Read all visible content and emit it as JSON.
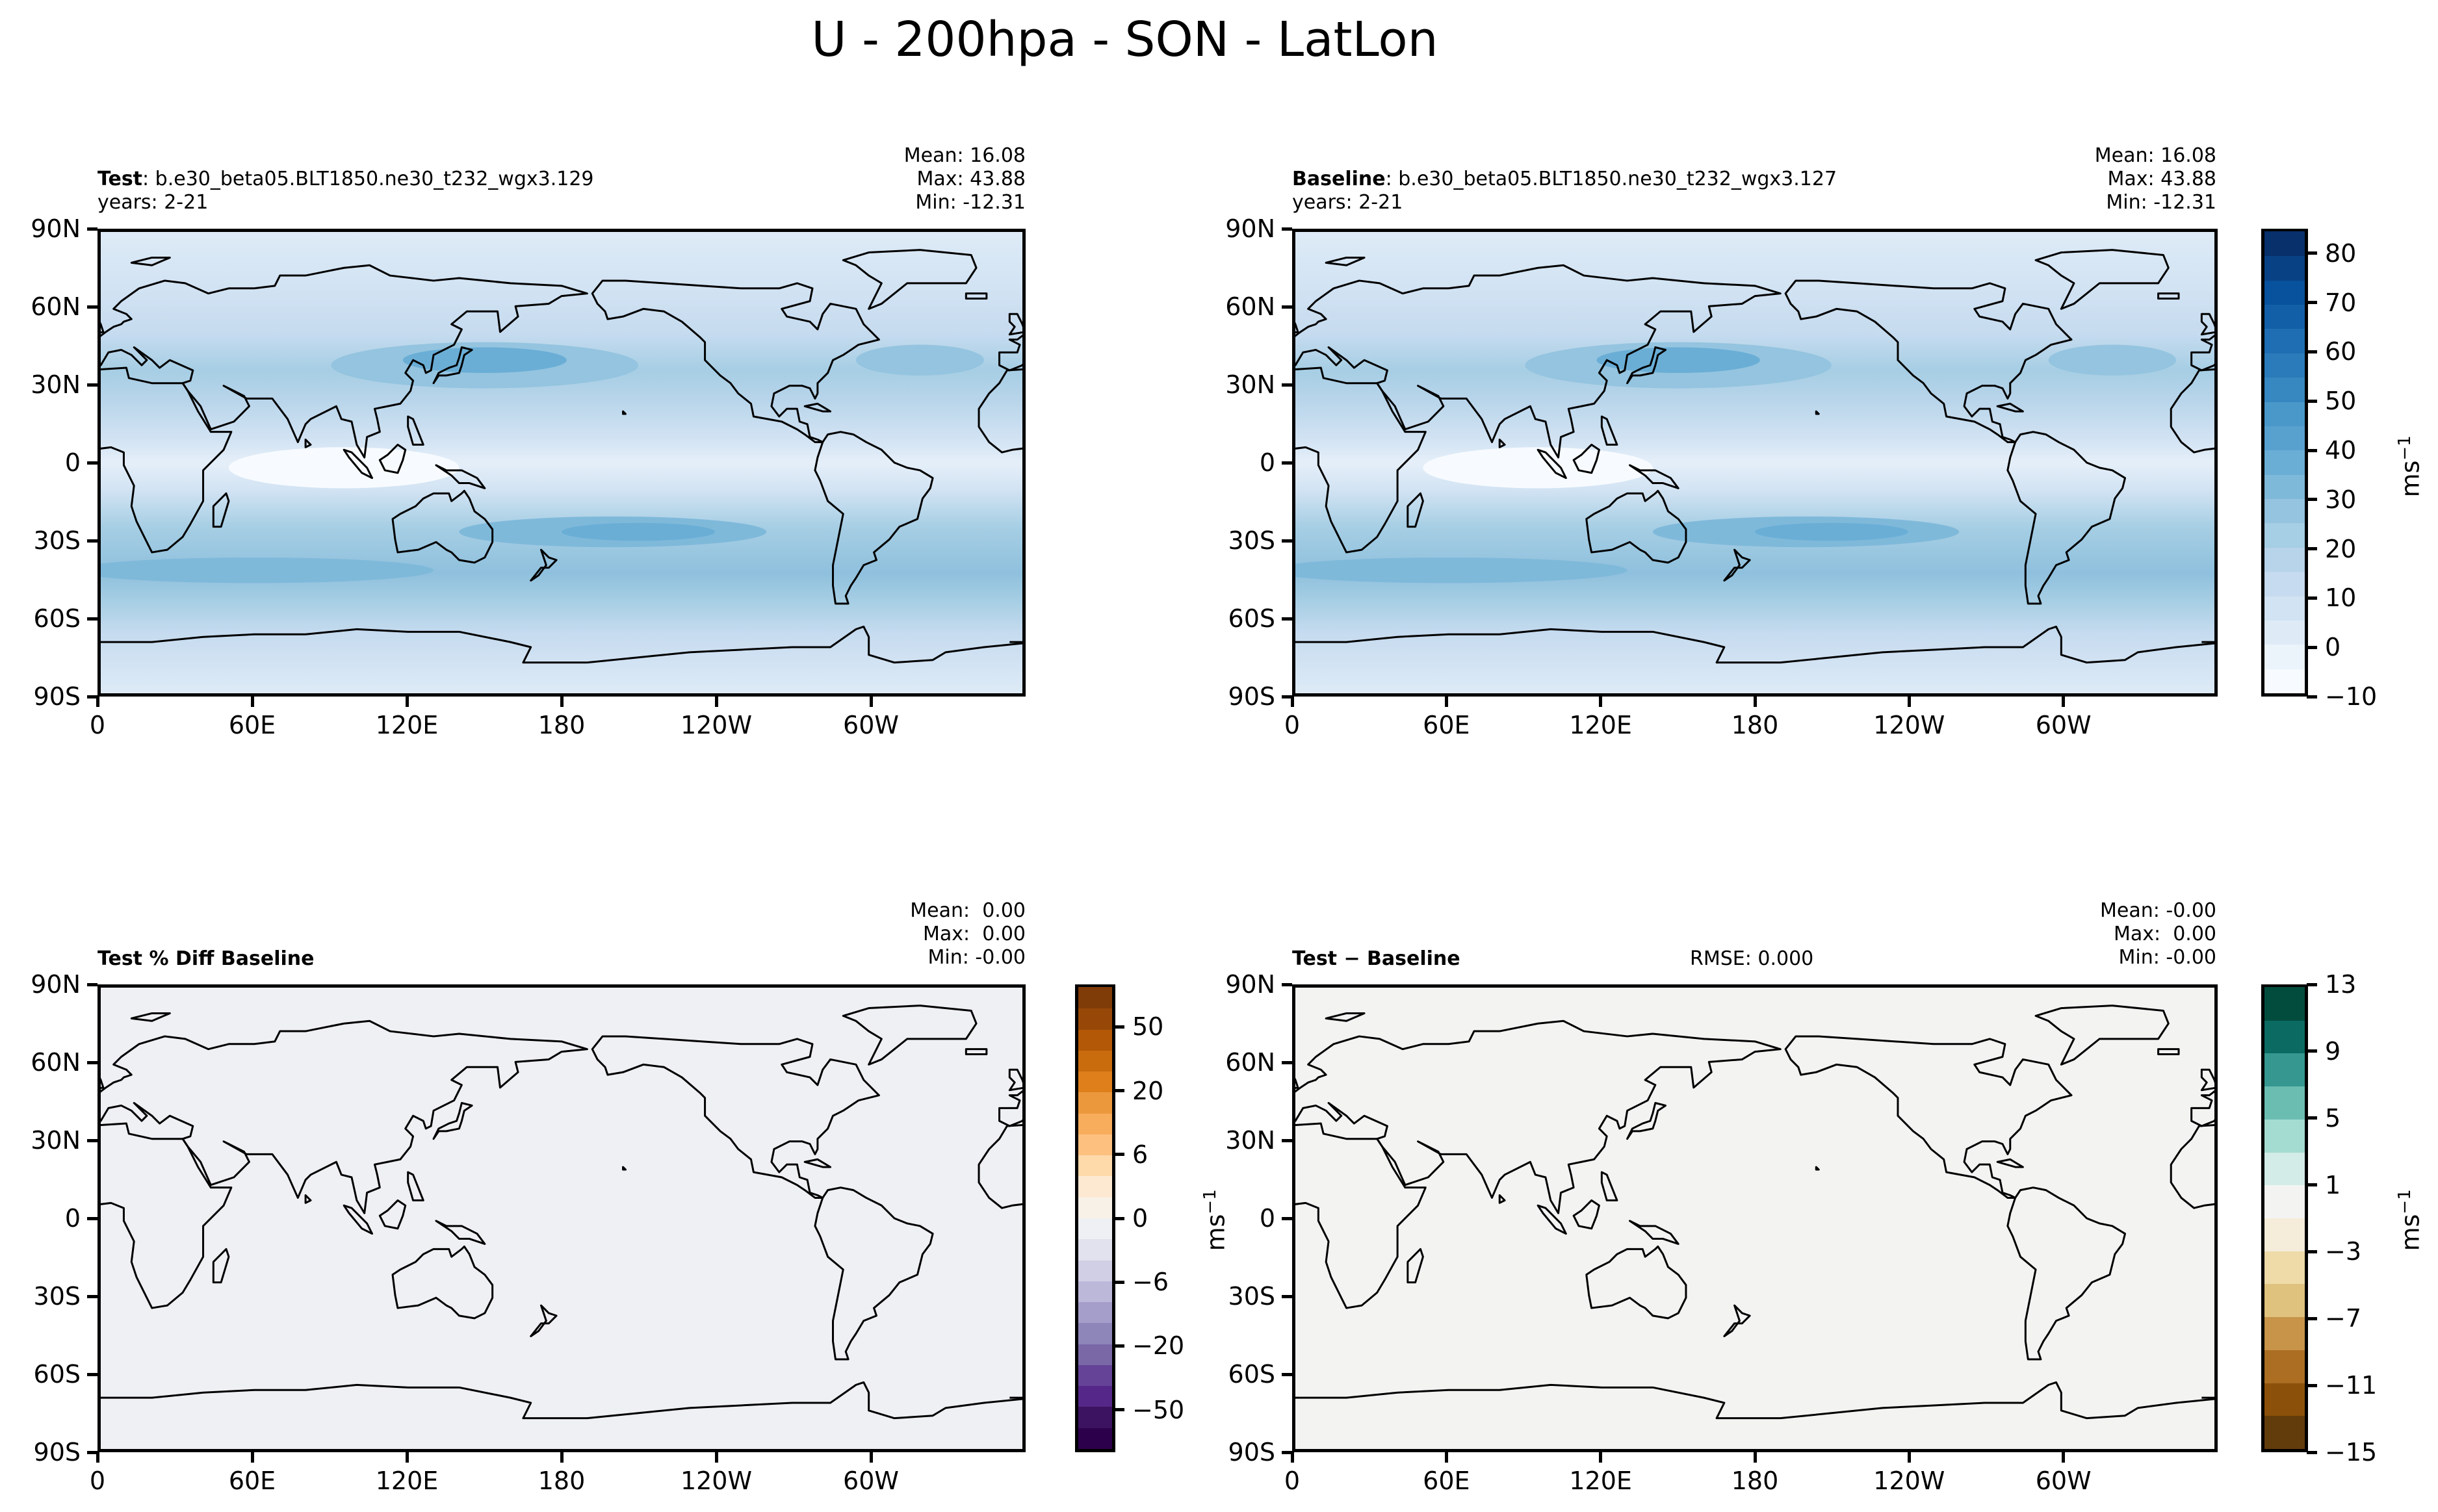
{
  "chart_data": {
    "type": "heatmap",
    "title": "U - 200hpa - SON - LatLon",
    "lat_ticks": [
      "90N",
      "60N",
      "30N",
      "0",
      "30S",
      "60S",
      "90S"
    ],
    "lat_values": [
      90,
      60,
      30,
      0,
      -30,
      -60,
      -90
    ],
    "lon_ticks": [
      "0",
      "60E",
      "120E",
      "180",
      "120W",
      "60W"
    ],
    "lon_values": [
      0,
      60,
      120,
      180,
      240,
      300
    ],
    "panels": [
      {
        "label": "Test",
        "case": ": b.e30_beta05.BLT1850.ne30_t232_wgx3.129",
        "years": "years: 2-21",
        "mean": "Mean: 16.08",
        "max": "Max: 43.88",
        "min": "Min: -12.31",
        "field": "blues"
      },
      {
        "label": "Baseline",
        "case": ": b.e30_beta05.BLT1850.ne30_t232_wgx3.127",
        "years": "years: 2-21",
        "mean": "Mean: 16.08",
        "max": "Max: 43.88",
        "min": "Min: -12.31",
        "field": "blues"
      },
      {
        "label": "Test % Diff Baseline",
        "mean": "Mean:  0.00",
        "max": "Max:  0.00",
        "min": "Min: -0.00",
        "field": "#eff0f4"
      },
      {
        "label": "Test − Baseline",
        "rmse": "RMSE: 0.000",
        "mean": "Mean: -0.00",
        "max": "Max:  0.00",
        "min": "Min: -0.00",
        "field": "#f3f4f2"
      }
    ],
    "colorbars": [
      {
        "unit": "ms",
        "unit_exp": "−1",
        "levels": [
          -10,
          -5,
          0,
          5,
          10,
          15,
          20,
          25,
          30,
          35,
          40,
          45,
          50,
          55,
          60,
          65,
          70,
          75,
          80,
          85
        ],
        "tick_every": 2,
        "tick_labels": [
          "−10",
          "0",
          "10",
          "20",
          "30",
          "40",
          "50",
          "60",
          "70",
          "80"
        ],
        "colors": [
          "#f7fbff",
          "#ebf3fb",
          "#deebf7",
          "#d2e3f3",
          "#c6dbef",
          "#b7d4ea",
          "#a6cee4",
          "#94c4df",
          "#7fb9da",
          "#6aaed6",
          "#58a1cf",
          "#4a98c9",
          "#3787c0",
          "#2b7bba",
          "#1f6eb3",
          "#135fa7",
          "#08519c",
          "#084184",
          "#08306b"
        ]
      },
      {
        "unit": "ms",
        "unit_exp": "−1",
        "levels": [
          -100,
          -75,
          -50,
          -40,
          -30,
          -20,
          -15,
          -10,
          -6,
          -4,
          -2,
          0,
          2,
          4,
          6,
          10,
          15,
          20,
          30,
          40,
          50,
          75,
          100
        ],
        "tick_every": 3,
        "tick_offset": 2,
        "tick_labels": [
          "−50",
          "−20",
          "−6",
          "0",
          "6",
          "20",
          "50"
        ],
        "colors": [
          "#2d004b",
          "#3c1361",
          "#542788",
          "#654397",
          "#7a68a6",
          "#8e86b9",
          "#a59dca",
          "#bcb8d9",
          "#d1cfe5",
          "#e2e2ee",
          "#eff0f4",
          "#f8f1e8",
          "#fde8d2",
          "#fed9aa",
          "#fdc07f",
          "#f7ad5b",
          "#eb983d",
          "#de7f1b",
          "#c86c0e",
          "#b35806",
          "#974808",
          "#7f3b08"
        ]
      },
      {
        "unit": "ms",
        "unit_exp": "−1",
        "levels": [
          -15,
          -13,
          -11,
          -9,
          -7,
          -5,
          -3,
          -1,
          1,
          3,
          5,
          7,
          9,
          11,
          13
        ],
        "tick_every": 2,
        "tick_labels": [
          "−15",
          "−11",
          "−7",
          "−3",
          "1",
          "5",
          "9",
          "13"
        ],
        "colors": [
          "#633c0b",
          "#8b510a",
          "#ab6e23",
          "#c7944a",
          "#dfc27d",
          "#eedba8",
          "#f5ecd9",
          "#f3f4f2",
          "#d3ece8",
          "#a5dcd1",
          "#6bbdb2",
          "#35978f",
          "#0b6b63",
          "#024c3e"
        ]
      }
    ]
  }
}
